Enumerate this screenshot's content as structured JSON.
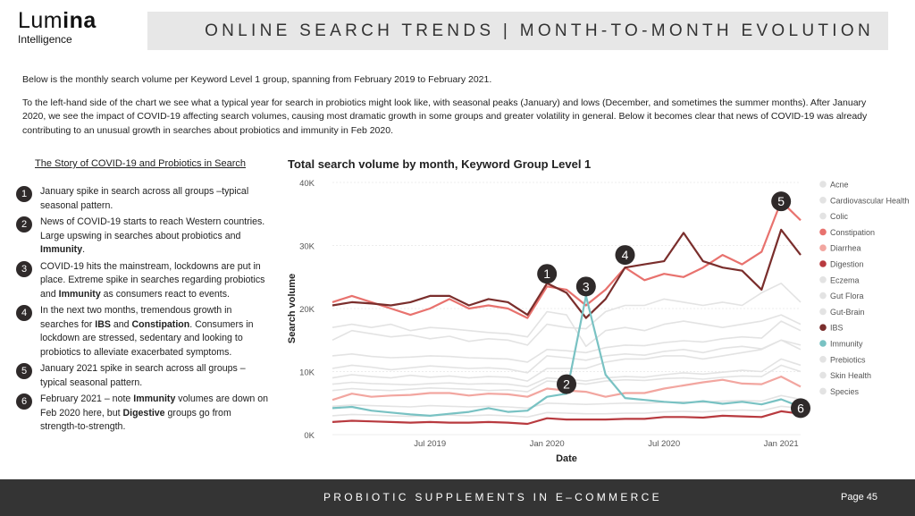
{
  "logo": {
    "brand_part1": "Lum",
    "brand_part2": "ina",
    "subtitle": "Intelligence"
  },
  "header": {
    "title": "ONLINE SEARCH TRENDS | MONTH-TO-MONTH EVOLUTION"
  },
  "intro": {
    "paragraph1": "Below is the monthly search volume per Keyword Level 1 group, spanning from February 2019 to February 2021.",
    "paragraph2": "To the left-hand side of the chart we see what a typical year for search in probiotics might look like, with seasonal peaks (January) and lows (December, and sometimes  the summer months). After January 2020, we see the impact of COVID-19 affecting search volumes, causing most dramatic growth in some groups and greater volatility  in general. Below it becomes clear that news of COVID-19 was already contributing to an unusual growth in searches about probiotics and immunity in Feb 2020."
  },
  "story": {
    "heading": "The Story of COVID-19 and Probiotics in Search",
    "items": [
      {
        "num": "1",
        "text": "January spike in search across all groups –typical seasonal pattern."
      },
      {
        "num": "2",
        "text": "News of COVID-19 starts to reach Western countries. Large upswing in searches about probiotics and ",
        "bold1": "Immunity",
        "text2": "."
      },
      {
        "num": "3",
        "text": "COVID-19 hits the mainstream, lockdowns  are put in place. Extreme spike in searches regarding probiotics and ",
        "bold1": "Immunity",
        "text2": " as consumers react to events."
      },
      {
        "num": "4",
        "text": "In the next two months, tremendous growth  in searches for ",
        "bold1": "IBS",
        "text2": " and ",
        "bold2": "Constipation",
        "text3": ".  Consumers in lockdown are stressed,  sedentary and looking to probiotics to  alleviate exacerbated symptoms."
      },
      {
        "num": "5",
        "text": "January 2021 spike in search across all  groups – typical seasonal pattern."
      },
      {
        "num": "6",
        "text": "February 2021 – note ",
        "bold1": "Immunity",
        "text2": " volumes  are down on Feb 2020 here, but ",
        "bold2": "Digestive",
        "text3": "  groups go from strength-to-strength."
      }
    ]
  },
  "chart_data": {
    "type": "line",
    "title": "Total search volume by month, Keyword Group Level 1",
    "xlabel": "Date",
    "ylabel": "Search volume",
    "x": [
      "2019-02",
      "2019-03",
      "2019-04",
      "2019-05",
      "2019-06",
      "2019-07",
      "2019-08",
      "2019-09",
      "2019-10",
      "2019-11",
      "2019-12",
      "2020-01",
      "2020-02",
      "2020-03",
      "2020-04",
      "2020-05",
      "2020-06",
      "2020-07",
      "2020-08",
      "2020-09",
      "2020-10",
      "2020-11",
      "2020-12",
      "2021-01",
      "2021-02"
    ],
    "x_tick_labels": [
      {
        "x": "2019-07",
        "label": "Jul 2019"
      },
      {
        "x": "2020-01",
        "label": "Jan 2020"
      },
      {
        "x": "2020-07",
        "label": "Jul 2020"
      },
      {
        "x": "2021-01",
        "label": "Jan 2021"
      }
    ],
    "y_ticks": [
      0,
      10000,
      20000,
      30000,
      40000
    ],
    "y_tick_labels": [
      "0K",
      "10K",
      "20K",
      "30K",
      "40K"
    ],
    "ylim": [
      0,
      40000
    ],
    "grid": true,
    "legend_position": "right",
    "series": [
      {
        "name": "Acne",
        "color": "#e3e3e3",
        "values": [
          15000,
          16500,
          16000,
          15500,
          15800,
          15200,
          15600,
          14800,
          15200,
          15000,
          14200,
          17500,
          17000,
          16800,
          19500,
          20500,
          20500,
          21500,
          21000,
          20500,
          21000,
          20500,
          22500,
          24000,
          21000
        ]
      },
      {
        "name": "Cardiovascular Health",
        "color": "#e3e3e3",
        "values": [
          9000,
          9500,
          9200,
          9000,
          9400,
          9100,
          9300,
          9000,
          9200,
          9100,
          8500,
          10500,
          10500,
          10500,
          11500,
          12000,
          12000,
          12500,
          12500,
          12000,
          12500,
          13000,
          13500,
          15000,
          13500
        ]
      },
      {
        "name": "Colic",
        "color": "#e3e3e3",
        "values": [
          17000,
          17500,
          17000,
          17500,
          16500,
          17000,
          16800,
          16500,
          16200,
          16000,
          15500,
          19500,
          19000,
          14000,
          16500,
          17000,
          16500,
          17500,
          18000,
          17500,
          17000,
          17500,
          18000,
          19000,
          17500
        ]
      },
      {
        "name": "Constipation",
        "color": "#e8726e",
        "values": [
          21000,
          22000,
          21000,
          20000,
          19000,
          20000,
          21500,
          20000,
          20500,
          20000,
          18500,
          23500,
          23000,
          20500,
          23000,
          26500,
          24500,
          25500,
          25000,
          26500,
          28500,
          27000,
          29000,
          37000,
          34000
        ]
      },
      {
        "name": "Diarrhea",
        "color": "#f2a6a0",
        "values": [
          5500,
          6500,
          6000,
          6200,
          6300,
          6600,
          6600,
          6200,
          6500,
          6400,
          6000,
          7300,
          7000,
          6800,
          6000,
          6600,
          6600,
          7300,
          7800,
          8300,
          8700,
          8100,
          8000,
          9200,
          7600
        ]
      },
      {
        "name": "Digestion",
        "color": "#b83a3f",
        "values": [
          2000,
          2200,
          2100,
          2000,
          1900,
          2000,
          1900,
          1900,
          2000,
          1900,
          1700,
          2600,
          2400,
          2400,
          2400,
          2500,
          2500,
          2800,
          2800,
          2700,
          3000,
          2900,
          2800,
          3700,
          3300
        ]
      },
      {
        "name": "Eczema",
        "color": "#e3e3e3",
        "values": [
          4500,
          4700,
          4600,
          4500,
          4400,
          4600,
          4500,
          4400,
          4500,
          4400,
          4200,
          5000,
          4900,
          4800,
          4900,
          5000,
          5000,
          5100,
          5200,
          5100,
          5300,
          5400,
          5300,
          6200,
          5600
        ]
      },
      {
        "name": "Gut Flora",
        "color": "#e3e3e3",
        "values": [
          7000,
          7300,
          7100,
          7000,
          7200,
          7400,
          7300,
          7200,
          7000,
          7100,
          6800,
          8500,
          8300,
          8000,
          8500,
          8700,
          8600,
          8900,
          9000,
          8800,
          9100,
          9300,
          9200,
          11000,
          10000
        ]
      },
      {
        "name": "Gut-Brain",
        "color": "#e3e3e3",
        "values": [
          12500,
          12800,
          12400,
          12200,
          12300,
          12500,
          12400,
          12200,
          12100,
          12000,
          11500,
          13500,
          13300,
          13000,
          13800,
          14200,
          14100,
          14600,
          14900,
          14700,
          15200,
          15500,
          15300,
          18000,
          16500
        ]
      },
      {
        "name": "IBS",
        "color": "#7a2e2c",
        "values": [
          20500,
          21000,
          20800,
          20500,
          21000,
          22000,
          22000,
          20500,
          21500,
          21000,
          19000,
          24000,
          22500,
          18500,
          21500,
          26500,
          27000,
          27500,
          32000,
          27500,
          26500,
          26000,
          23000,
          32500,
          28500
        ]
      },
      {
        "name": "Immunity",
        "color": "#79c2c3",
        "values": [
          4200,
          4400,
          3800,
          3500,
          3200,
          3000,
          3300,
          3600,
          4200,
          3600,
          3800,
          6000,
          6500,
          22000,
          9500,
          5800,
          5500,
          5200,
          5000,
          5300,
          4900,
          5200,
          4800,
          5600,
          4400
        ]
      },
      {
        "name": "Prebiotics",
        "color": "#e3e3e3",
        "values": [
          10500,
          11000,
          10700,
          10300,
          10600,
          10900,
          10700,
          10500,
          10600,
          10400,
          9800,
          12500,
          12200,
          11800,
          12500,
          12800,
          12600,
          13200,
          13500,
          13000,
          13700,
          14000,
          13600,
          15000,
          14200
        ]
      },
      {
        "name": "Skin Health",
        "color": "#e3e3e3",
        "values": [
          3000,
          3200,
          3100,
          3000,
          2900,
          3000,
          3100,
          3000,
          3100,
          3000,
          2800,
          3500,
          3400,
          3300,
          3300,
          3400,
          3400,
          3600,
          3700,
          3600,
          3800,
          3900,
          3800,
          4500,
          4200
        ]
      },
      {
        "name": "Species",
        "color": "#e3e3e3",
        "values": [
          8000,
          8300,
          8100,
          8000,
          7900,
          8100,
          8200,
          8000,
          8100,
          8000,
          7600,
          9000,
          8800,
          8500,
          9000,
          9200,
          9100,
          9500,
          9800,
          9600,
          9900,
          10200,
          10000,
          12000,
          11000
        ]
      }
    ],
    "markers": [
      {
        "label": "1",
        "x": "2020-01",
        "y": 25500
      },
      {
        "label": "2",
        "x": "2020-02",
        "y": 8000
      },
      {
        "label": "3",
        "x": "2020-03",
        "y": 23500
      },
      {
        "label": "4",
        "x": "2020-05",
        "y": 28500
      },
      {
        "label": "5",
        "x": "2021-01",
        "y": 37000
      },
      {
        "label": "6",
        "x": "2021-02",
        "y": 4200
      }
    ]
  },
  "footer": {
    "text": "PROBIOTIC SUPPLEMENTS IN E–COMMERCE",
    "page": "Page 45"
  }
}
